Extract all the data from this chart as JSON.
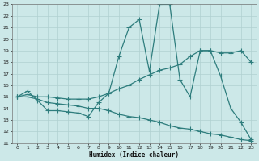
{
  "xlabel": "Humidex (Indice chaleur)",
  "xlim": [
    -0.5,
    23.5
  ],
  "ylim": [
    11,
    23
  ],
  "xticks": [
    0,
    1,
    2,
    3,
    4,
    5,
    6,
    7,
    8,
    9,
    10,
    11,
    12,
    13,
    14,
    15,
    16,
    17,
    18,
    19,
    20,
    21,
    22,
    23
  ],
  "yticks": [
    11,
    12,
    13,
    14,
    15,
    16,
    17,
    18,
    19,
    20,
    21,
    22,
    23
  ],
  "bg_color": "#cce8e8",
  "line_color": "#2e7d7d",
  "grid_color": "#b0d0d0",
  "line1_x": [
    0,
    1,
    2,
    3,
    4,
    5,
    6,
    7,
    8,
    9,
    10,
    11,
    12,
    13,
    14,
    15,
    16,
    17,
    18,
    19,
    20,
    21,
    22,
    23
  ],
  "line1_y": [
    15,
    15.5,
    14.7,
    13.8,
    13.8,
    13.7,
    13.6,
    13.3,
    14.5,
    15.3,
    18.5,
    21.0,
    21.7,
    17.2,
    23.0,
    23.0,
    16.5,
    15.0,
    19.0,
    19.0,
    16.8,
    14.0,
    12.8,
    11.3
  ],
  "line2_x": [
    0,
    1,
    2,
    3,
    4,
    5,
    6,
    7,
    8,
    9,
    10,
    11,
    12,
    13,
    14,
    15,
    16,
    17,
    18,
    19,
    20,
    21,
    22,
    23
  ],
  "line2_y": [
    15,
    15.2,
    15.0,
    15.0,
    14.9,
    14.8,
    14.8,
    14.8,
    15.0,
    15.3,
    15.7,
    16.0,
    16.5,
    16.9,
    17.3,
    17.5,
    17.8,
    18.5,
    19.0,
    19.0,
    18.8,
    18.8,
    19.0,
    18.0
  ],
  "line3_x": [
    0,
    1,
    2,
    3,
    4,
    5,
    6,
    7,
    8,
    9,
    10,
    11,
    12,
    13,
    14,
    15,
    16,
    17,
    18,
    19,
    20,
    21,
    22,
    23
  ],
  "line3_y": [
    15,
    15.0,
    14.8,
    14.5,
    14.4,
    14.3,
    14.2,
    14.0,
    14.0,
    13.8,
    13.5,
    13.3,
    13.2,
    13.0,
    12.8,
    12.5,
    12.3,
    12.2,
    12.0,
    11.8,
    11.7,
    11.5,
    11.3,
    11.2
  ]
}
